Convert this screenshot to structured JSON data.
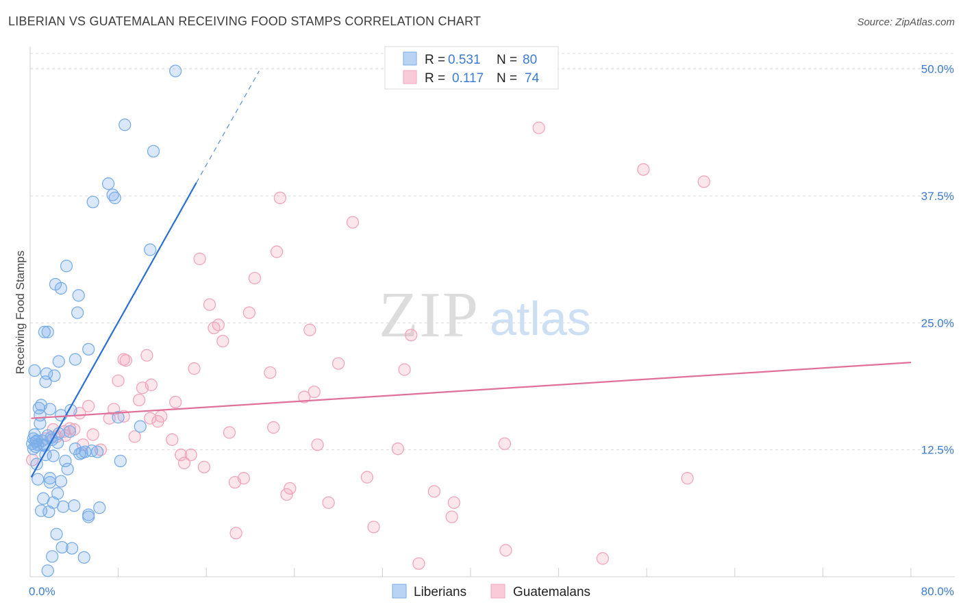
{
  "title": "LIBERIAN VS GUATEMALAN RECEIVING FOOD STAMPS CORRELATION CHART",
  "source": "Source: ZipAtlas.com",
  "watermark": {
    "zip": "ZIP",
    "atlas": "atlas"
  },
  "chart_data": {
    "type": "scatter",
    "ylabel": "Receiving Food Stamps",
    "xlim": [
      0,
      80
    ],
    "ylim": [
      0,
      52
    ],
    "x_ticks": [
      0,
      8,
      16,
      24,
      32,
      40,
      48,
      56,
      64,
      72,
      80
    ],
    "x_tick_labels": {
      "min": "0.0%",
      "max": "80.0%"
    },
    "y_gridlines": [
      12.5,
      25.0,
      37.5,
      50.0
    ],
    "y_tick_labels": [
      "12.5%",
      "25.0%",
      "37.5%",
      "50.0%"
    ],
    "legend": [
      {
        "r_label": "R =",
        "r_value": "0.531",
        "n_label": "N =",
        "n_value": "80"
      },
      {
        "r_label": "R =",
        "r_value": "0.117",
        "n_label": "N =",
        "n_value": "74"
      }
    ],
    "series": [
      {
        "name": "Liberians",
        "color": "#7aaee8",
        "line_color": "#2a6fd1",
        "trend": {
          "x0": 0.1,
          "y0": 9.8,
          "x1": 15.1,
          "y1": 38.8,
          "dash_x1": 20.8,
          "dash_y1": 49.8
        },
        "points": [
          [
            13.2,
            49.8
          ],
          [
            8.6,
            44.5
          ],
          [
            11.2,
            41.9
          ],
          [
            7.1,
            38.7
          ],
          [
            7.5,
            37.6
          ],
          [
            5.7,
            36.9
          ],
          [
            7.7,
            37.3
          ],
          [
            10.9,
            32.2
          ],
          [
            3.3,
            30.6
          ],
          [
            2.3,
            28.8
          ],
          [
            2.8,
            28.4
          ],
          [
            4.4,
            27.7
          ],
          [
            4.3,
            26.0
          ],
          [
            1.3,
            24.1
          ],
          [
            1.6,
            24.1
          ],
          [
            5.3,
            22.4
          ],
          [
            4.1,
            21.4
          ],
          [
            2.6,
            21.2
          ],
          [
            0.4,
            20.3
          ],
          [
            1.5,
            20.0
          ],
          [
            2.2,
            19.8
          ],
          [
            1.4,
            19.2
          ],
          [
            1.0,
            16.9
          ],
          [
            0.8,
            16.6
          ],
          [
            3.7,
            16.4
          ],
          [
            1.8,
            16.5
          ],
          [
            0.9,
            15.9
          ],
          [
            2.8,
            15.9
          ],
          [
            8.0,
            15.7
          ],
          [
            0.9,
            15.1
          ],
          [
            10.0,
            14.8
          ],
          [
            3.6,
            14.3
          ],
          [
            2.6,
            14.1
          ],
          [
            1.6,
            13.9
          ],
          [
            0.3,
            13.6
          ],
          [
            1.1,
            13.4
          ],
          [
            0.5,
            13.3
          ],
          [
            0.2,
            13.1
          ],
          [
            0.7,
            13.0
          ],
          [
            0.5,
            12.8
          ],
          [
            2.5,
            13.2
          ],
          [
            1.3,
            12.9
          ],
          [
            0.3,
            12.6
          ],
          [
            4.1,
            12.6
          ],
          [
            5.0,
            12.3
          ],
          [
            4.5,
            12.1
          ],
          [
            5.6,
            12.4
          ],
          [
            4.7,
            12.2
          ],
          [
            1.4,
            12.0
          ],
          [
            2.1,
            11.9
          ],
          [
            3.2,
            11.4
          ],
          [
            8.2,
            11.4
          ],
          [
            0.6,
            11.1
          ],
          [
            3.4,
            10.6
          ],
          [
            0.7,
            9.6
          ],
          [
            1.8,
            9.7
          ],
          [
            2.8,
            9.4
          ],
          [
            1.8,
            9.3
          ],
          [
            2.5,
            8.2
          ],
          [
            1.2,
            7.7
          ],
          [
            2.1,
            7.3
          ],
          [
            3.0,
            6.9
          ],
          [
            4.0,
            7.0
          ],
          [
            6.3,
            6.8
          ],
          [
            1.0,
            6.5
          ],
          [
            1.7,
            6.4
          ],
          [
            5.3,
            6.1
          ],
          [
            5.3,
            5.9
          ],
          [
            2.4,
            4.2
          ],
          [
            2.9,
            2.9
          ],
          [
            3.8,
            2.8
          ],
          [
            2.0,
            2.0
          ],
          [
            4.9,
            1.9
          ],
          [
            1.6,
            0.6
          ],
          [
            0.6,
            13.4
          ],
          [
            1.9,
            13.7
          ],
          [
            0.4,
            14.0
          ],
          [
            2.0,
            13.5
          ],
          [
            6.1,
            12.3
          ],
          [
            1.2,
            13.0
          ]
        ]
      },
      {
        "name": "Guatemalans",
        "color": "#f1a5bc",
        "line_color": "#e0709a",
        "trend": {
          "x0": 0.1,
          "y0": 15.6,
          "x1": 80.0,
          "y1": 21.1
        },
        "points": [
          [
            46.2,
            44.2
          ],
          [
            55.7,
            40.1
          ],
          [
            61.2,
            38.9
          ],
          [
            22.7,
            37.3
          ],
          [
            29.3,
            34.9
          ],
          [
            22.4,
            32.0
          ],
          [
            15.4,
            31.3
          ],
          [
            20.4,
            29.4
          ],
          [
            16.3,
            26.8
          ],
          [
            19.9,
            26.0
          ],
          [
            17.1,
            24.8
          ],
          [
            16.7,
            24.5
          ],
          [
            25.4,
            24.3
          ],
          [
            34.6,
            23.8
          ],
          [
            17.5,
            23.2
          ],
          [
            10.6,
            21.8
          ],
          [
            8.5,
            21.4
          ],
          [
            8.7,
            21.3
          ],
          [
            28.0,
            21.0
          ],
          [
            14.9,
            20.5
          ],
          [
            34.0,
            20.4
          ],
          [
            21.8,
            20.1
          ],
          [
            8.0,
            19.3
          ],
          [
            11.0,
            18.9
          ],
          [
            10.2,
            18.6
          ],
          [
            25.8,
            18.2
          ],
          [
            24.9,
            17.7
          ],
          [
            9.9,
            17.4
          ],
          [
            13.2,
            17.2
          ],
          [
            5.3,
            16.8
          ],
          [
            7.6,
            16.5
          ],
          [
            4.5,
            16.1
          ],
          [
            8.5,
            15.8
          ],
          [
            7.2,
            15.6
          ],
          [
            11.9,
            15.8
          ],
          [
            11.6,
            15.3
          ],
          [
            22.1,
            14.7
          ],
          [
            4.0,
            14.5
          ],
          [
            3.6,
            14.6
          ],
          [
            2.1,
            14.5
          ],
          [
            3.1,
            14.3
          ],
          [
            18.1,
            14.2
          ],
          [
            5.7,
            14.0
          ],
          [
            2.4,
            13.8
          ],
          [
            3.2,
            13.9
          ],
          [
            9.5,
            13.8
          ],
          [
            1.4,
            13.6
          ],
          [
            12.9,
            13.5
          ],
          [
            26.1,
            13.0
          ],
          [
            43.1,
            13.1
          ],
          [
            4.8,
            13.0
          ],
          [
            6.4,
            12.5
          ],
          [
            33.4,
            12.6
          ],
          [
            13.7,
            12.0
          ],
          [
            14.6,
            12.0
          ],
          [
            14.0,
            11.2
          ],
          [
            15.8,
            10.8
          ],
          [
            0.2,
            11.5
          ],
          [
            19.4,
            9.7
          ],
          [
            30.6,
            9.8
          ],
          [
            59.7,
            9.7
          ],
          [
            18.6,
            9.3
          ],
          [
            23.6,
            8.7
          ],
          [
            23.3,
            8.1
          ],
          [
            36.7,
            8.4
          ],
          [
            38.5,
            7.3
          ],
          [
            27.1,
            7.3
          ],
          [
            38.3,
            5.9
          ],
          [
            31.2,
            4.9
          ],
          [
            18.7,
            4.3
          ],
          [
            43.2,
            2.6
          ],
          [
            52.0,
            1.8
          ],
          [
            35.3,
            1.3
          ],
          [
            10.9,
            15.6
          ]
        ]
      }
    ]
  }
}
